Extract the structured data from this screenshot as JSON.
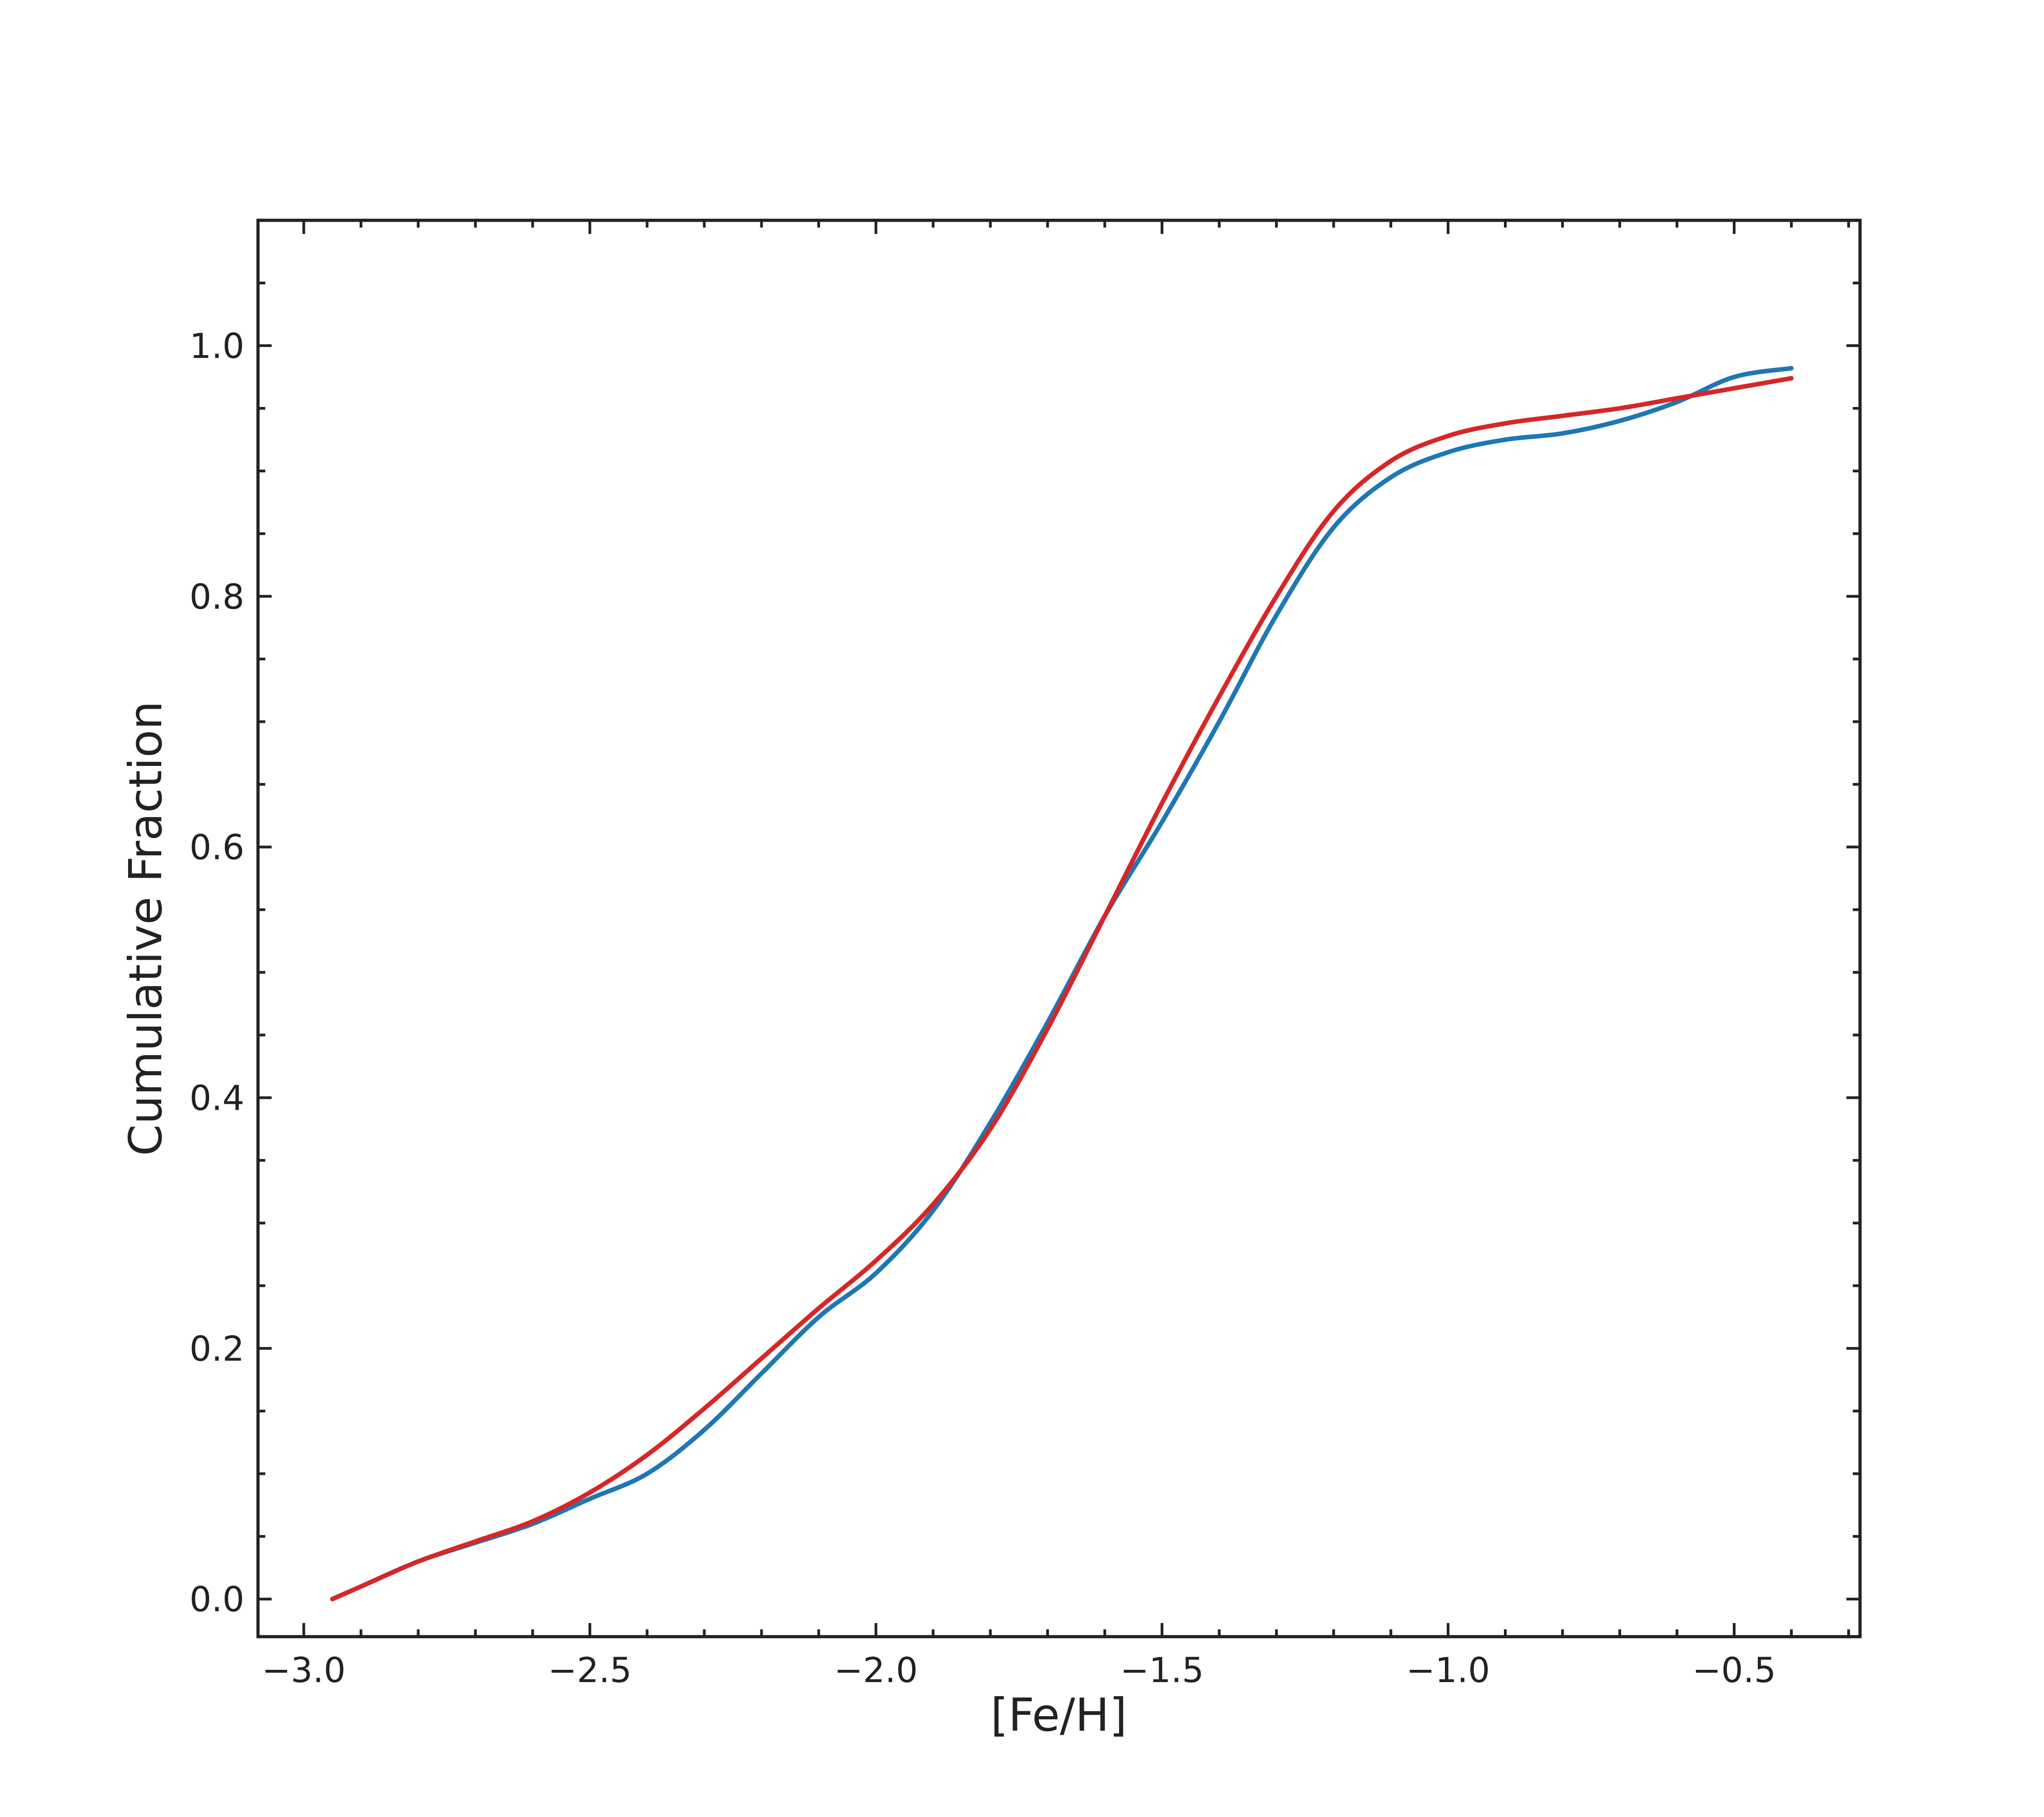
{
  "chart_data": {
    "type": "line",
    "title": "",
    "xlabel": "[Fe/H]",
    "ylabel": "Cumulative Fraction",
    "xlim": [
      -3.08,
      -0.28
    ],
    "ylim": [
      -0.03,
      1.1
    ],
    "xticks": [
      -3.0,
      -2.5,
      -2.0,
      -1.5,
      -1.0,
      -0.5
    ],
    "xtick_labels": [
      "−3.0",
      "−2.5",
      "−2.0",
      "−1.5",
      "−1.0",
      "−0.5"
    ],
    "yticks": [
      0.0,
      0.2,
      0.4,
      0.6,
      0.8,
      1.0
    ],
    "ytick_labels": [
      "0.0",
      "0.2",
      "0.4",
      "0.6",
      "0.8",
      "1.0"
    ],
    "x_minor_step": 0.1,
    "y_minor_step": 0.05,
    "grid": false,
    "tick_direction": "in",
    "series": [
      {
        "color": "#1f77b4",
        "x": [
          -2.95,
          -2.9,
          -2.8,
          -2.7,
          -2.6,
          -2.5,
          -2.4,
          -2.3,
          -2.2,
          -2.1,
          -2.0,
          -1.9,
          -1.8,
          -1.7,
          -1.6,
          -1.5,
          -1.4,
          -1.3,
          -1.2,
          -1.1,
          -1.0,
          -0.9,
          -0.8,
          -0.7,
          -0.6,
          -0.5,
          -0.4
        ],
        "y": [
          0.0,
          0.01,
          0.03,
          0.045,
          0.06,
          0.08,
          0.1,
          0.135,
          0.18,
          0.225,
          0.26,
          0.31,
          0.38,
          0.46,
          0.545,
          0.62,
          0.7,
          0.785,
          0.855,
          0.895,
          0.915,
          0.925,
          0.93,
          0.94,
          0.955,
          0.975,
          0.982
        ]
      },
      {
        "color": "#d62728",
        "x": [
          -2.95,
          -2.9,
          -2.8,
          -2.7,
          -2.6,
          -2.5,
          -2.4,
          -2.3,
          -2.2,
          -2.1,
          -2.0,
          -1.9,
          -1.8,
          -1.7,
          -1.6,
          -1.5,
          -1.4,
          -1.3,
          -1.2,
          -1.1,
          -1.0,
          -0.9,
          -0.8,
          -0.7,
          -0.6,
          -0.5,
          -0.4
        ],
        "y": [
          0.0,
          0.01,
          0.03,
          0.046,
          0.062,
          0.085,
          0.115,
          0.152,
          0.192,
          0.232,
          0.27,
          0.315,
          0.375,
          0.455,
          0.545,
          0.635,
          0.72,
          0.8,
          0.868,
          0.908,
          0.928,
          0.938,
          0.944,
          0.95,
          0.958,
          0.966,
          0.974
        ]
      }
    ]
  }
}
